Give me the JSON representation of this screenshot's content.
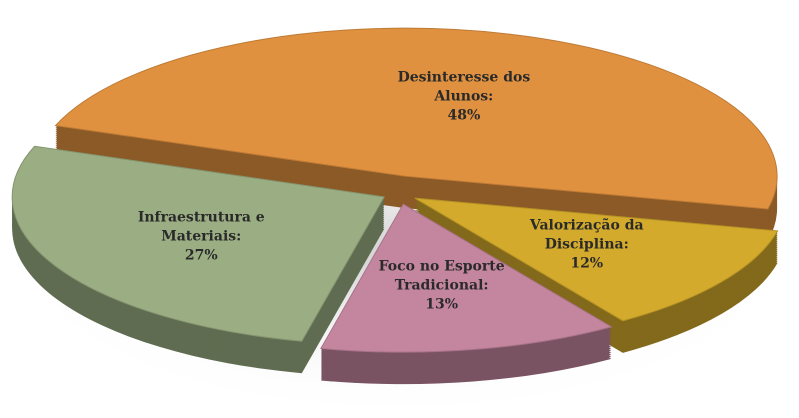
{
  "chart_data": {
    "type": "pie",
    "categories": [
      "Desinteresse dos Alunos:",
      "Valorização da Disciplina:",
      "Foco no Esporte Tradicional:",
      "Infraestrutura e Materiais:"
    ],
    "values": [
      48,
      12,
      13,
      27
    ],
    "value_labels": [
      "48%",
      "12%",
      "13%",
      "27%"
    ],
    "colors": [
      "#e0913f",
      "#d3aa2b",
      "#c4869f",
      "#9bae83"
    ]
  }
}
